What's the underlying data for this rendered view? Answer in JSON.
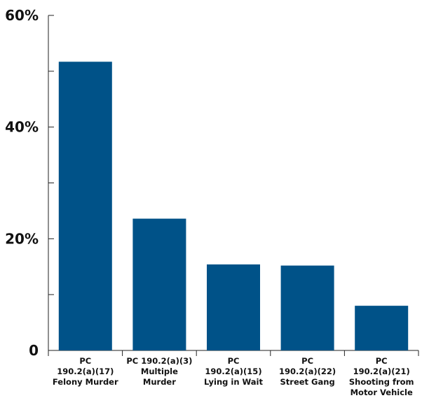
{
  "chart_data": {
    "type": "bar",
    "title": "",
    "xlabel": "",
    "ylabel": "",
    "ylim": [
      0,
      60
    ],
    "y_ticks": [
      0,
      20,
      40,
      60
    ],
    "y_tick_labels": [
      "0",
      "20%",
      "40%",
      "60%"
    ],
    "y_minor_ticks": [
      10,
      30,
      50
    ],
    "grid": false,
    "bar_color": "#005288",
    "categories": [
      [
        "PC",
        "190.2(a)(17)",
        "Felony Murder"
      ],
      [
        "PC 190.2(a)(3)",
        "Multiple",
        "Murder"
      ],
      [
        "PC",
        "190.2(a)(15)",
        "Lying in Wait"
      ],
      [
        "PC",
        "190.2(a)(22)",
        "Street Gang"
      ],
      [
        "PC",
        "190.2(a)(21)",
        "Shooting from",
        "Motor Vehicle"
      ]
    ],
    "values": [
      51.7,
      23.6,
      15.4,
      15.2,
      8.0
    ]
  }
}
